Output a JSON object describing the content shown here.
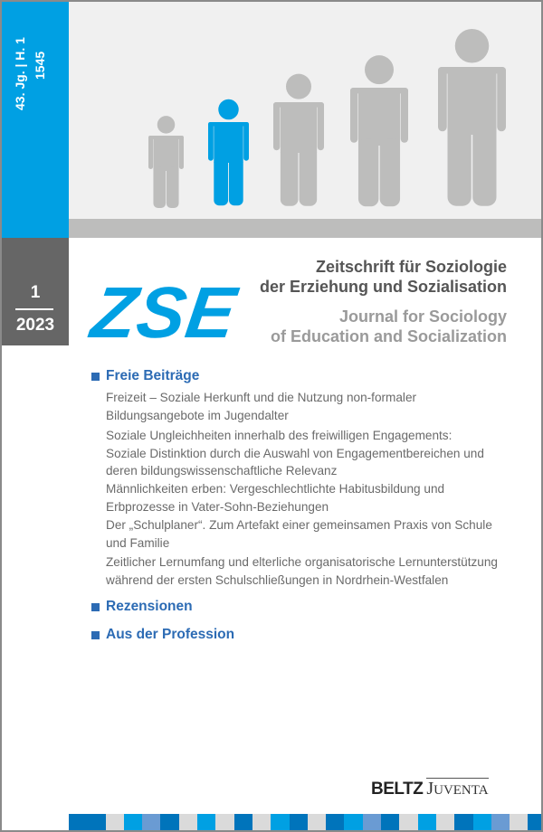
{
  "spine": {
    "volume_issue": "43. Jg. | H. 1",
    "number": "1545"
  },
  "issue": {
    "number": "1",
    "year": "2023"
  },
  "logo": "ZSE",
  "title_de": [
    "Zeitschrift für Soziologie",
    "der Erziehung und Sozialisation"
  ],
  "title_en": [
    "Journal for Sociology",
    "of Education and Socialization"
  ],
  "sections": [
    {
      "heading": "Freie Beiträge",
      "articles": [
        [
          "Freizeit – Soziale Herkunft und die Nutzung non-formaler",
          "Bildungsangebote im Jugendalter"
        ],
        [
          "Soziale Ungleichheiten innerhalb des freiwilligen Engagements:",
          "Soziale Distinktion durch die Auswahl von Engagementbereichen und",
          "deren bildungswissenschaftliche Relevanz"
        ],
        [
          "Männlichkeiten erben: Vergeschlechtlichte Habitusbildung und",
          "Erbprozesse in Vater-Sohn-Beziehungen"
        ],
        [
          "Der „Schulplaner“. Zum Artefakt einer gemeinsamen Praxis von Schule",
          "und Familie"
        ],
        [
          "Zeitlicher Lernumfang und elterliche organisatorische Lernunterstützung",
          "während der ersten Schulschließungen in Nordrhein-Westfalen"
        ]
      ]
    },
    {
      "heading": "Rezensionen"
    },
    {
      "heading": "Aus der Profession"
    }
  ],
  "publisher": {
    "part1": "BELTZ",
    "part2_initial": "J",
    "part2_rest": "UVENTA"
  },
  "colors": {
    "blue": "#00a0e3",
    "dark_blue": "#0074bb",
    "light_blue": "#6a9bd3",
    "grey": "#dadada",
    "heading_blue": "#2c6bb4",
    "figure_grey": "#bdbdbc"
  },
  "stripe": [
    "d",
    "d",
    "g",
    "c",
    "l",
    "d",
    "g",
    "c",
    "g",
    "d",
    "g",
    "c",
    "d",
    "g",
    "d",
    "c",
    "l",
    "d",
    "g",
    "c",
    "g",
    "d",
    "c",
    "l",
    "g",
    "d"
  ]
}
